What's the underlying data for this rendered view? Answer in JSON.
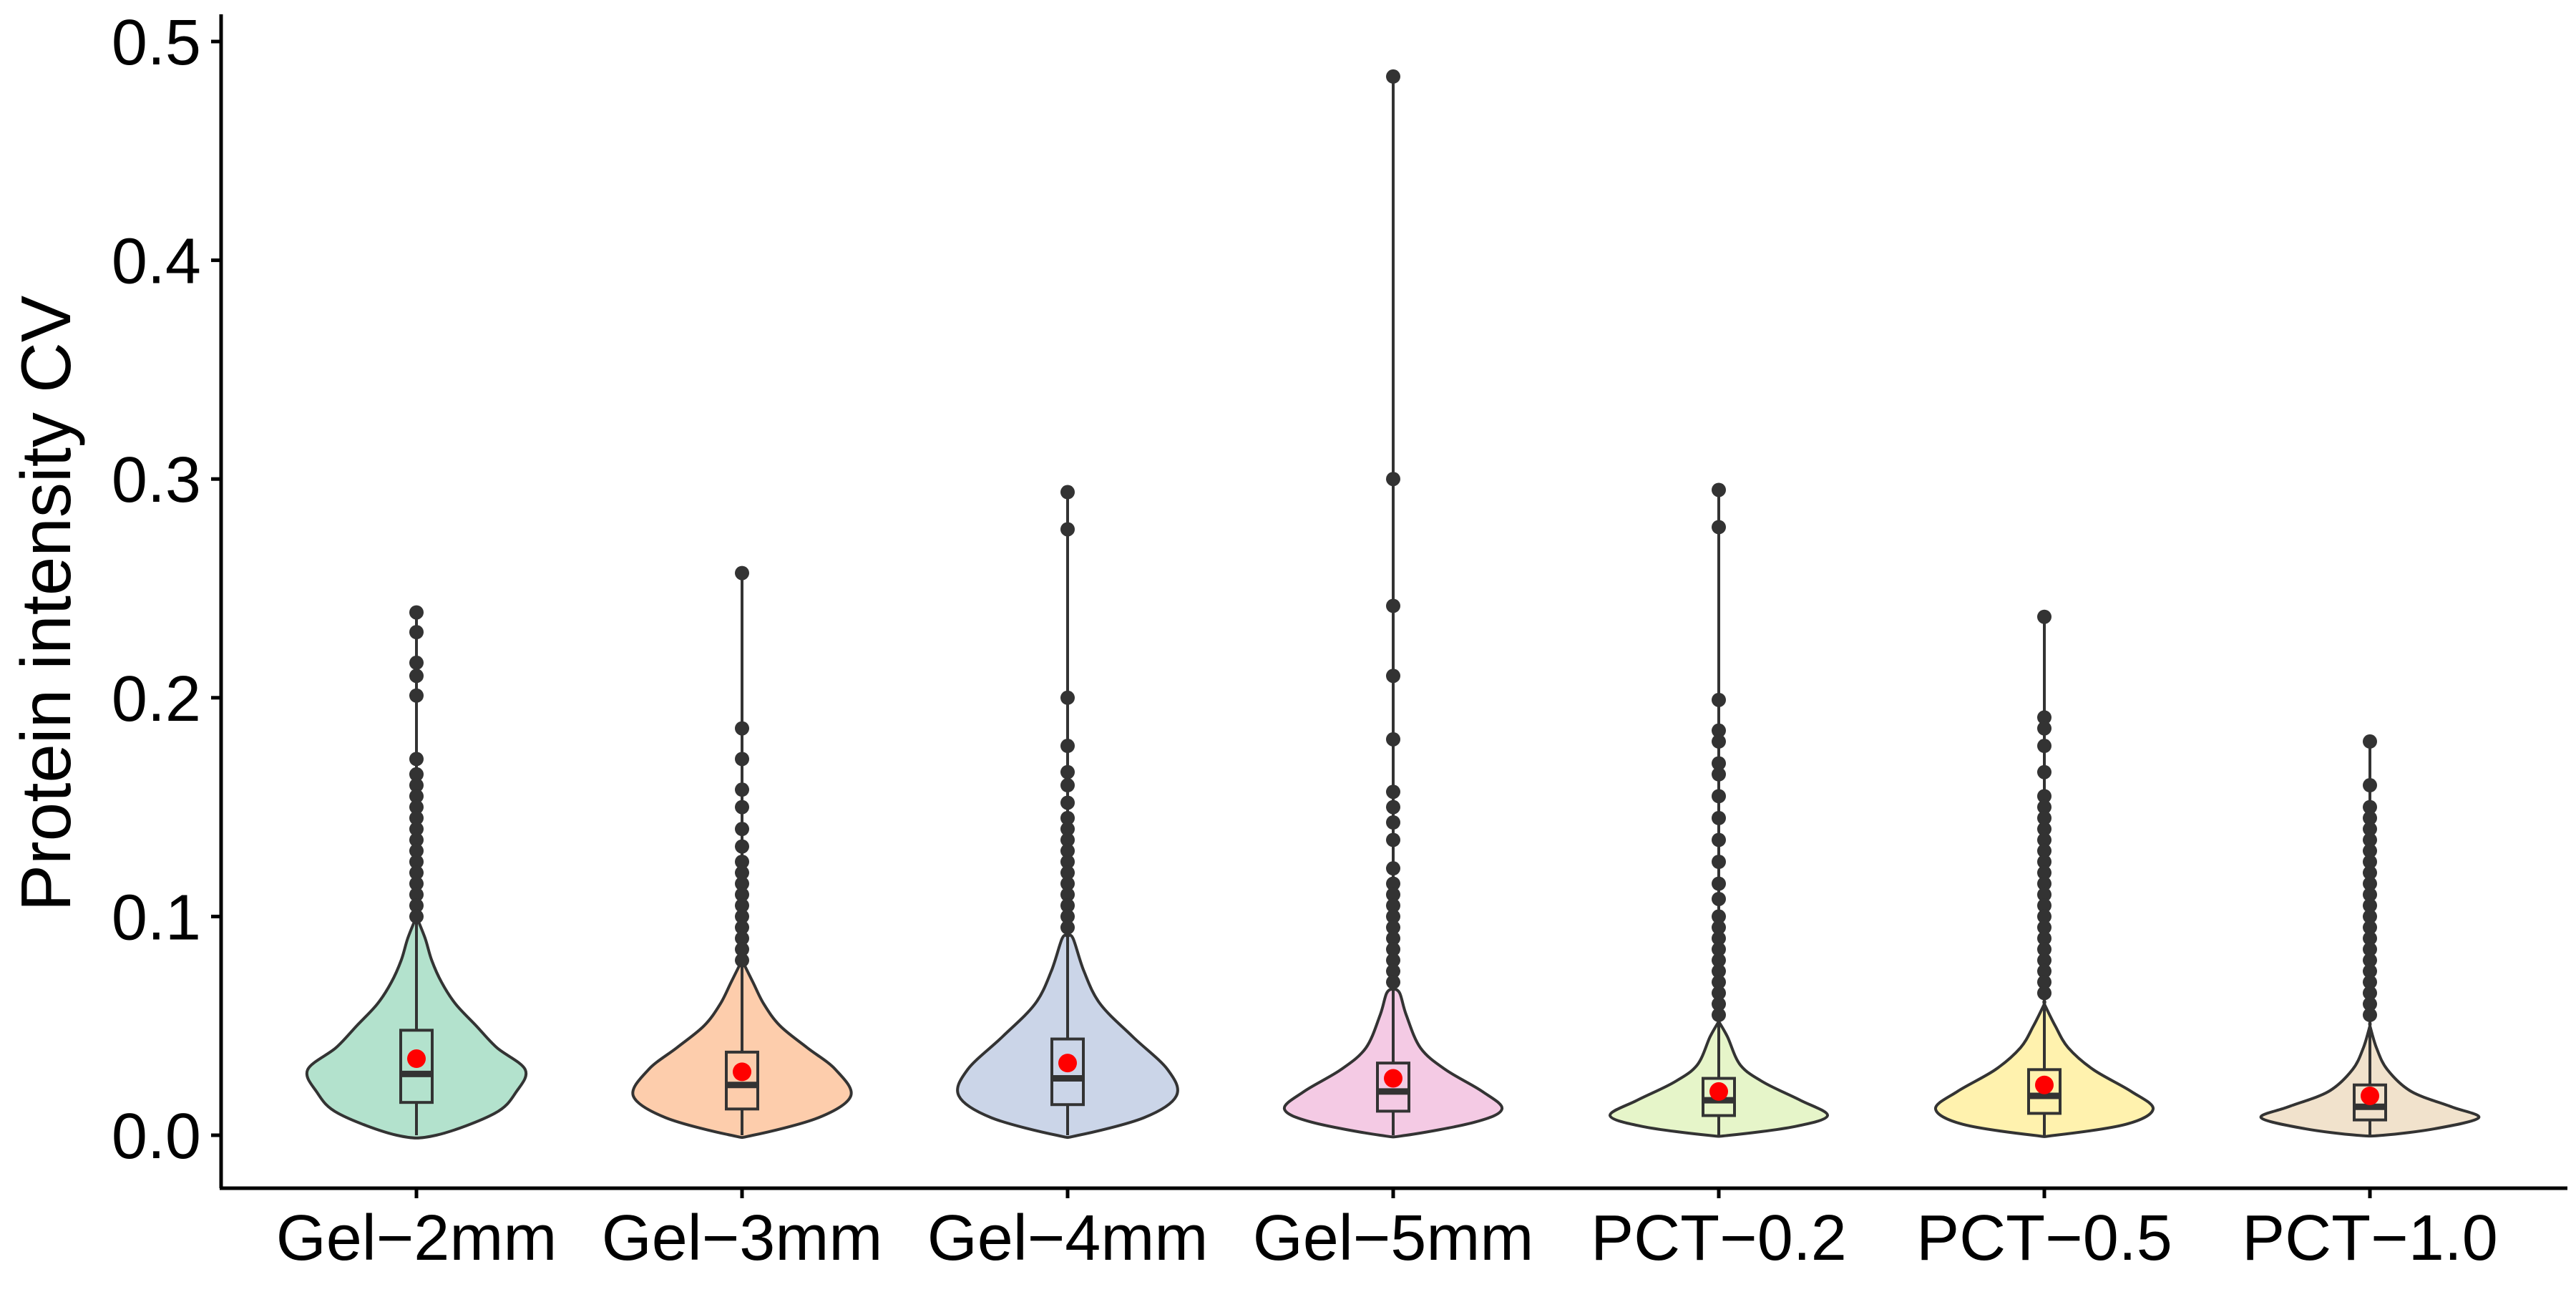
{
  "chart_data": {
    "type": "violin",
    "title": "",
    "xlabel": "",
    "ylabel": "Protein intensity CV",
    "ylim": [
      -0.024,
      0.51
    ],
    "yticks": [
      0.0,
      0.1,
      0.2,
      0.3,
      0.4,
      0.5
    ],
    "ytick_labels": [
      "0.0",
      "0.1",
      "0.2",
      "0.3",
      "0.4",
      "0.5"
    ],
    "grid": false,
    "legend": "none",
    "colors": {
      "outline": "#333333",
      "mean_point": "#ff0000",
      "axis": "#000000",
      "fills": [
        "#b3e2cd",
        "#fdcdac",
        "#cbd5e8",
        "#f4cae4",
        "#e6f5c9",
        "#fff2ae",
        "#f1e2cc"
      ]
    },
    "categories": [
      "Gel−2mm",
      "Gel−3mm",
      "Gel−4mm",
      "Gel−5mm",
      "PCT−0.2",
      "PCT−0.5",
      "PCT−1.0"
    ],
    "groups": [
      {
        "category": "Gel−2mm",
        "min": 0.0,
        "q1": 0.015,
        "median": 0.028,
        "q3": 0.048,
        "upper_whisker": 0.097,
        "max": 0.239,
        "mean": 0.035,
        "outliers": [
          0.239,
          0.23,
          0.216,
          0.21,
          0.201,
          0.172,
          0.165,
          0.16,
          0.155,
          0.15,
          0.145,
          0.14,
          0.135,
          0.13,
          0.125,
          0.12,
          0.115,
          0.11,
          0.105,
          0.1
        ],
        "density": [
          [
            0.0,
            0.18
          ],
          [
            0.01,
            0.72
          ],
          [
            0.02,
            0.92
          ],
          [
            0.03,
            1.0
          ],
          [
            0.04,
            0.74
          ],
          [
            0.05,
            0.55
          ],
          [
            0.06,
            0.36
          ],
          [
            0.07,
            0.23
          ],
          [
            0.08,
            0.14
          ],
          [
            0.09,
            0.08
          ],
          [
            0.1,
            0.04
          ]
        ]
      },
      {
        "category": "Gel−3mm",
        "min": 0.0,
        "q1": 0.012,
        "median": 0.023,
        "q3": 0.038,
        "upper_whisker": 0.076,
        "max": 0.257,
        "mean": 0.029,
        "outliers": [
          0.257,
          0.186,
          0.172,
          0.158,
          0.15,
          0.14,
          0.132,
          0.125,
          0.12,
          0.115,
          0.11,
          0.105,
          0.1,
          0.095,
          0.09,
          0.085,
          0.08
        ],
        "density": [
          [
            0.0,
            0.1
          ],
          [
            0.008,
            0.7
          ],
          [
            0.018,
            1.0
          ],
          [
            0.03,
            0.86
          ],
          [
            0.04,
            0.6
          ],
          [
            0.05,
            0.35
          ],
          [
            0.06,
            0.2
          ],
          [
            0.07,
            0.1
          ],
          [
            0.08,
            0.05
          ]
        ]
      },
      {
        "category": "Gel−4mm",
        "min": 0.0,
        "q1": 0.014,
        "median": 0.026,
        "q3": 0.044,
        "upper_whisker": 0.091,
        "max": 0.294,
        "mean": 0.033,
        "outliers": [
          0.294,
          0.277,
          0.2,
          0.178,
          0.166,
          0.16,
          0.152,
          0.145,
          0.14,
          0.135,
          0.13,
          0.125,
          0.12,
          0.115,
          0.11,
          0.105,
          0.1,
          0.095
        ],
        "density": [
          [
            0.0,
            0.1
          ],
          [
            0.008,
            0.7
          ],
          [
            0.018,
            1.0
          ],
          [
            0.03,
            0.92
          ],
          [
            0.045,
            0.6
          ],
          [
            0.06,
            0.3
          ],
          [
            0.075,
            0.15
          ],
          [
            0.09,
            0.05
          ]
        ]
      },
      {
        "category": "Gel−5mm",
        "min": 0.0,
        "q1": 0.011,
        "median": 0.02,
        "q3": 0.033,
        "upper_whisker": 0.067,
        "max": 0.484,
        "mean": 0.026,
        "outliers": [
          0.484,
          0.3,
          0.242,
          0.21,
          0.181,
          0.157,
          0.15,
          0.143,
          0.135,
          0.122,
          0.115,
          0.11,
          0.105,
          0.1,
          0.095,
          0.09,
          0.085,
          0.08,
          0.075,
          0.07
        ],
        "density": [
          [
            0.0,
            0.12
          ],
          [
            0.006,
            0.75
          ],
          [
            0.012,
            1.0
          ],
          [
            0.02,
            0.82
          ],
          [
            0.03,
            0.48
          ],
          [
            0.04,
            0.25
          ],
          [
            0.055,
            0.12
          ],
          [
            0.065,
            0.06
          ]
        ]
      },
      {
        "category": "PCT−0.2",
        "min": 0.0,
        "q1": 0.009,
        "median": 0.016,
        "q3": 0.026,
        "upper_whisker": 0.052,
        "max": 0.295,
        "mean": 0.02,
        "outliers": [
          0.295,
          0.278,
          0.199,
          0.185,
          0.18,
          0.17,
          0.165,
          0.155,
          0.145,
          0.135,
          0.125,
          0.115,
          0.108,
          0.1,
          0.095,
          0.09,
          0.085,
          0.08,
          0.075,
          0.07,
          0.065,
          0.06,
          0.055
        ],
        "density": [
          [
            0.0,
            0.1
          ],
          [
            0.004,
            0.7
          ],
          [
            0.009,
            1.0
          ],
          [
            0.016,
            0.75
          ],
          [
            0.024,
            0.42
          ],
          [
            0.032,
            0.2
          ],
          [
            0.045,
            0.08
          ],
          [
            0.052,
            0.03
          ]
        ]
      },
      {
        "category": "PCT−0.5",
        "min": 0.0,
        "q1": 0.01,
        "median": 0.018,
        "q3": 0.03,
        "upper_whisker": 0.06,
        "max": 0.237,
        "mean": 0.023,
        "outliers": [
          0.237,
          0.191,
          0.186,
          0.178,
          0.166,
          0.155,
          0.15,
          0.145,
          0.14,
          0.135,
          0.13,
          0.125,
          0.12,
          0.115,
          0.11,
          0.105,
          0.1,
          0.095,
          0.09,
          0.085,
          0.08,
          0.075,
          0.07,
          0.065
        ],
        "density": [
          [
            0.0,
            0.1
          ],
          [
            0.005,
            0.75
          ],
          [
            0.012,
            1.0
          ],
          [
            0.02,
            0.8
          ],
          [
            0.03,
            0.45
          ],
          [
            0.04,
            0.22
          ],
          [
            0.05,
            0.1
          ],
          [
            0.06,
            0.04
          ]
        ]
      },
      {
        "category": "PCT−1.0",
        "min": 0.0,
        "q1": 0.007,
        "median": 0.013,
        "q3": 0.023,
        "upper_whisker": 0.05,
        "max": 0.18,
        "mean": 0.018,
        "outliers": [
          0.18,
          0.16,
          0.15,
          0.145,
          0.14,
          0.135,
          0.13,
          0.125,
          0.12,
          0.115,
          0.11,
          0.105,
          0.1,
          0.095,
          0.09,
          0.085,
          0.08,
          0.075,
          0.07,
          0.065,
          0.06,
          0.055
        ],
        "density": [
          [
            0.0,
            0.12
          ],
          [
            0.003,
            0.6
          ],
          [
            0.008,
            1.0
          ],
          [
            0.013,
            0.75
          ],
          [
            0.02,
            0.38
          ],
          [
            0.03,
            0.16
          ],
          [
            0.04,
            0.06
          ],
          [
            0.05,
            0.02
          ]
        ]
      }
    ]
  }
}
